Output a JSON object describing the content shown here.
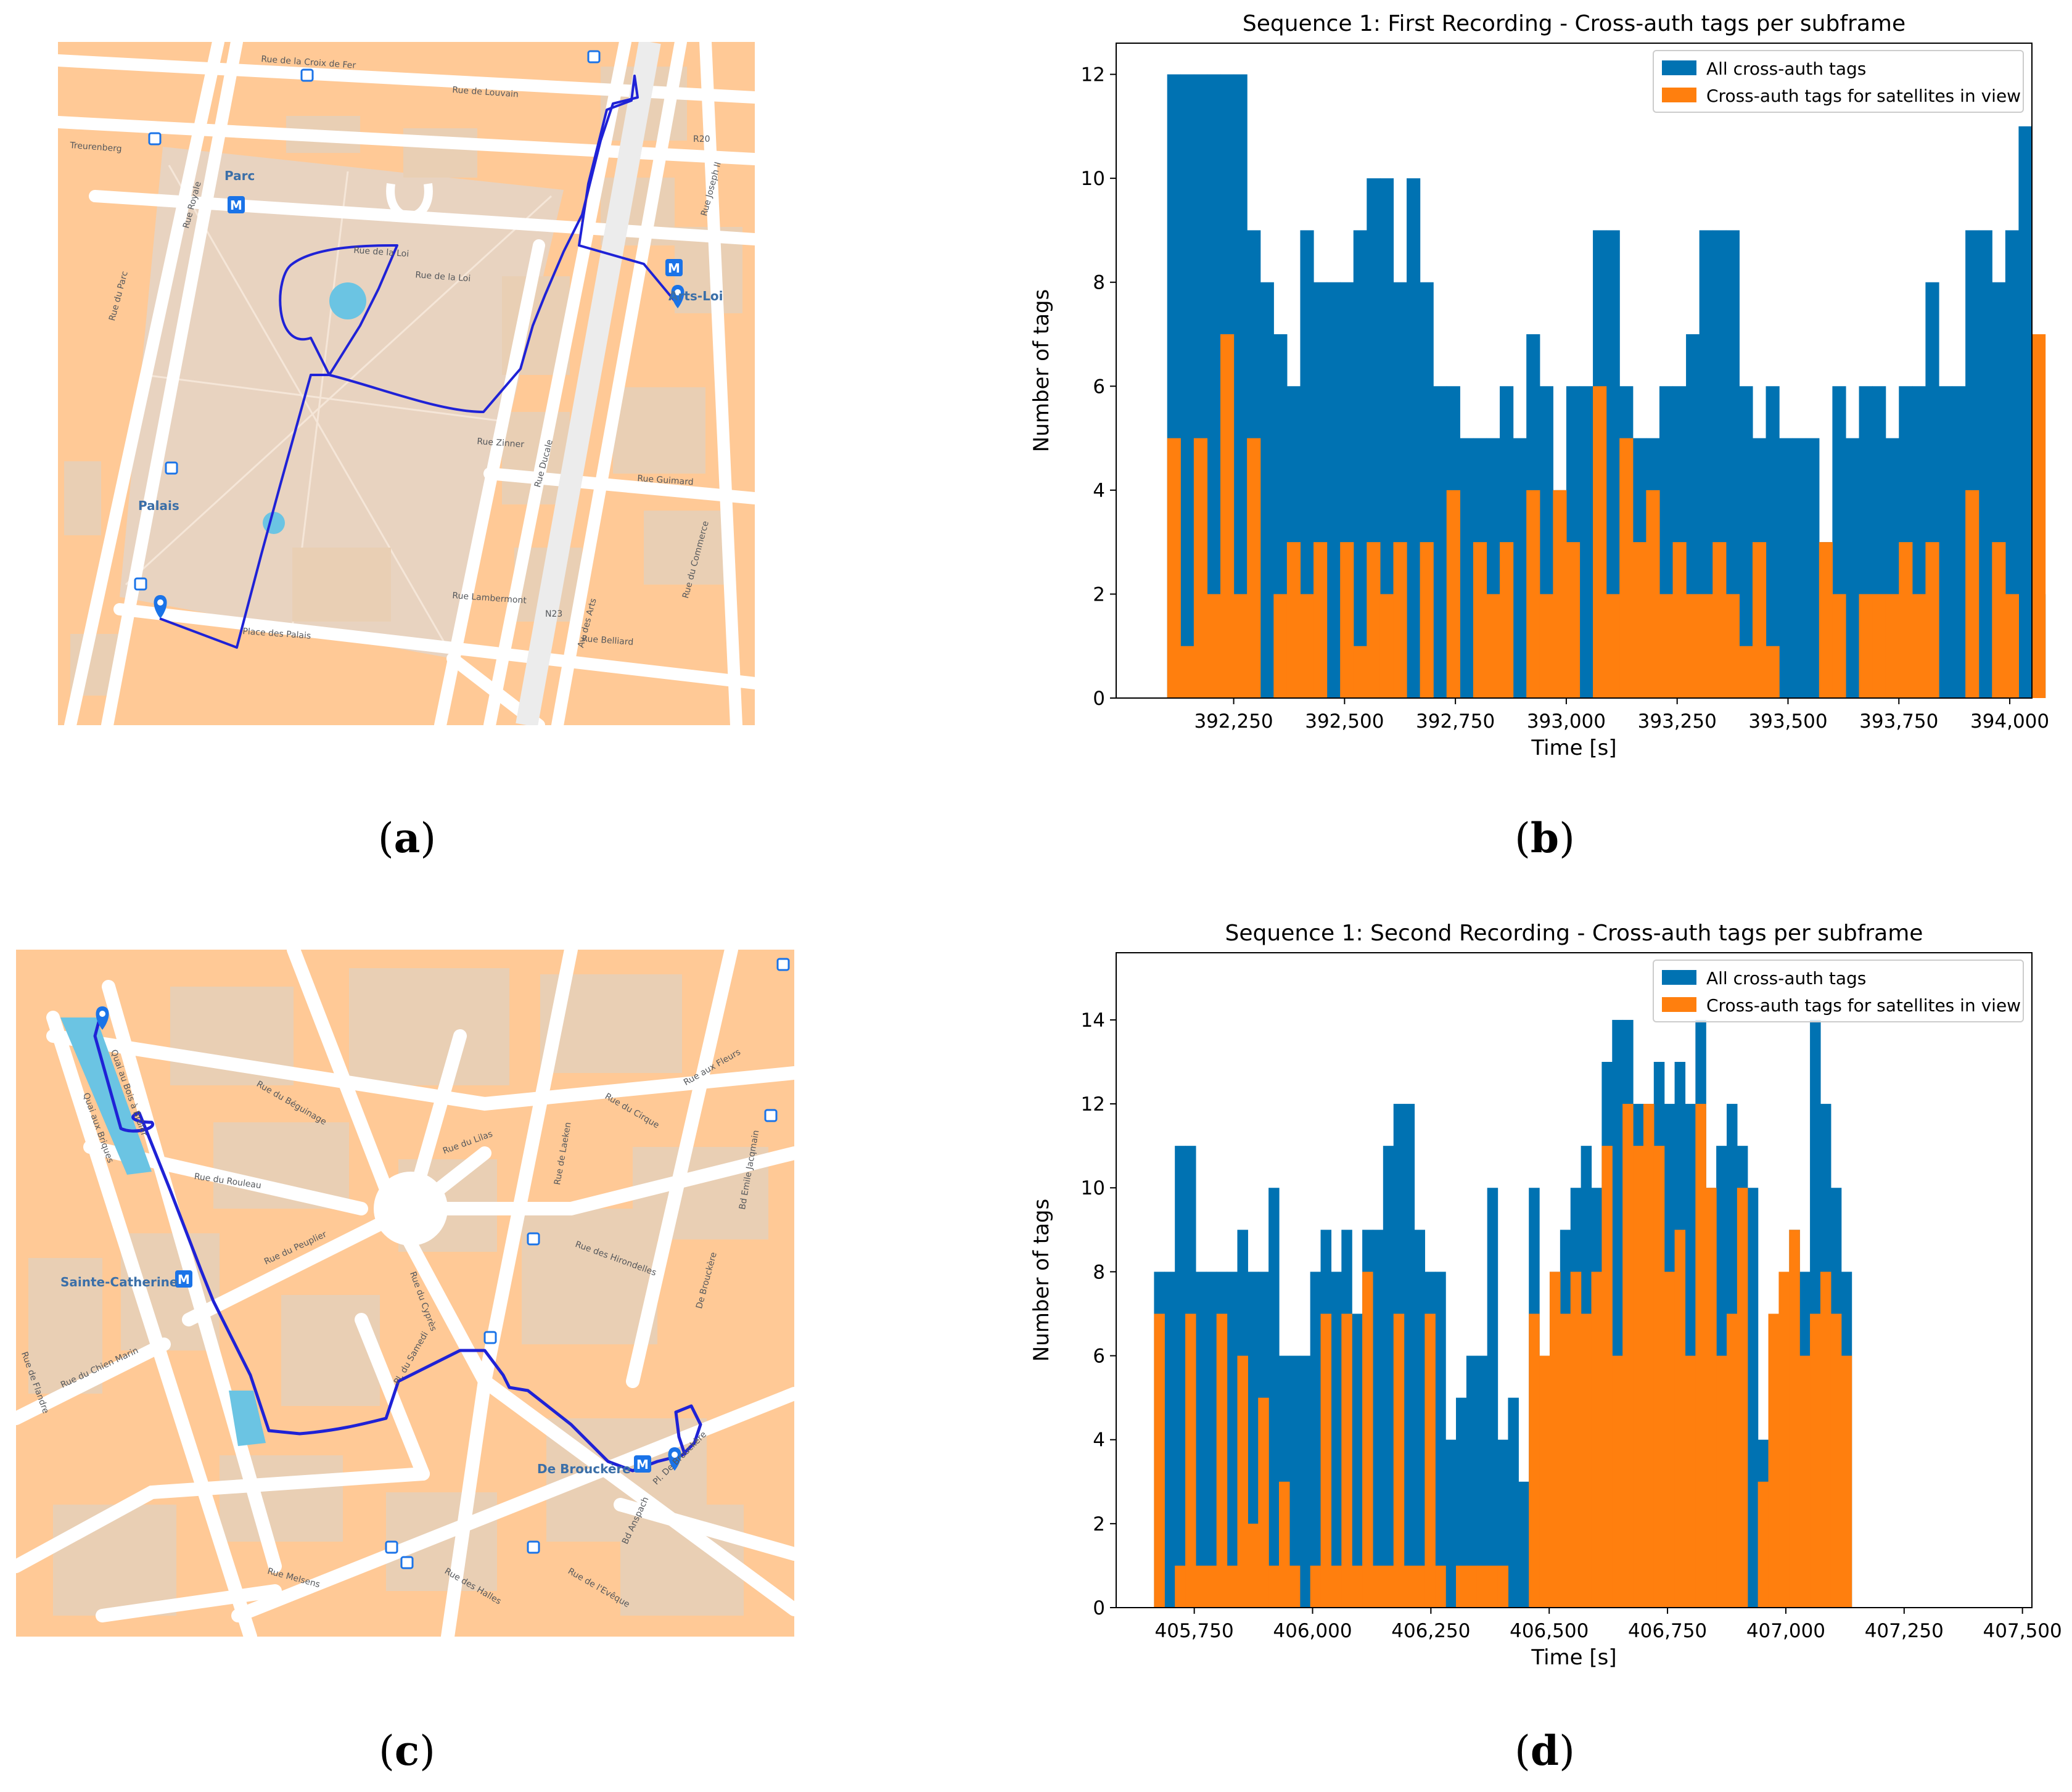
{
  "captions": {
    "a": "a",
    "b": "b",
    "c": "c",
    "d": "d"
  },
  "map_a": {
    "street_labels": [
      "Rue de la Croix de Fer",
      "Rue de Louvain",
      "Treurenberg",
      "Parc",
      "Rue de la Loi",
      "Rue Royale",
      "Rue Ducale",
      "Arts-Loi",
      "Rue Joseph II",
      "Rue du Parc",
      "Rue Zinner",
      "Palais",
      "Rue Guimard",
      "Rue Lambermont",
      "Rue Belliard",
      "Place des Palais",
      "Av. des Arts",
      "Rue du Commerce",
      "Rue de la Loi"
    ],
    "station_labels": [
      "Parc",
      "Arts-Loi",
      "Palais"
    ],
    "road_codes": [
      "R20",
      "N23"
    ]
  },
  "map_c": {
    "street_labels": [
      "Quai aux Briques",
      "Quai au Bois à Brûler",
      "Rue du Béguinage",
      "Rue du Rouleau",
      "Rue du Lilas",
      "Rue de Laeken",
      "Rue du Cirque",
      "Rue aux Fleurs",
      "Rue des Hirondelles",
      "Bd Emile Jacqmain",
      "Rue du Peuplier",
      "Rue de Flandre",
      "Rue du Chien Marin",
      "Rue du Cyprès",
      "Pl. du Samedi",
      "De Brouckère",
      "Pl. De Brouckère",
      "Bd Anspach",
      "Rue Melsens",
      "Rue des Halles",
      "Rue de l'Evêque"
    ],
    "station_labels": [
      "Sainte-Catherine",
      "De Brouckère"
    ]
  },
  "colors": {
    "all": "#0072b2",
    "view": "#ff7f0e",
    "track": "#1f22d6",
    "map_bg": "#f3dcc2",
    "street": "#ffffff",
    "block": "#ffc996",
    "park": "#e8d3c0",
    "water": "#6bc4e3"
  },
  "chart_data": [
    {
      "type": "bar",
      "title": "Sequence 1: First Recording - Cross-auth tags per subframe",
      "xlabel": "Time [s]",
      "ylabel": "Number of tags",
      "x_start": 392100,
      "bin_width": 30,
      "xlim": [
        391985,
        394050
      ],
      "ylim": [
        0,
        12.6
      ],
      "xticks": [
        392250,
        392500,
        392750,
        393000,
        393250,
        393500,
        393750,
        394000
      ],
      "xtick_labels": [
        "392,250",
        "392,500",
        "392,750",
        "393,000",
        "393,250",
        "393,500",
        "393,750",
        "394,000"
      ],
      "yticks": [
        0,
        2,
        4,
        6,
        8,
        10,
        12
      ],
      "ytick_labels": [
        "0",
        "2",
        "4",
        "6",
        "8",
        "10",
        "12"
      ],
      "legend_position": "top-right",
      "series": [
        {
          "name": "All cross-auth tags",
          "values": [
            12,
            12,
            12,
            12,
            12,
            12,
            9,
            8,
            7,
            6,
            9,
            8,
            8,
            8,
            9,
            10,
            10,
            8,
            10,
            8,
            6,
            6,
            5,
            5,
            5,
            6,
            5,
            7,
            6,
            4,
            6,
            6,
            9,
            9,
            6,
            5,
            5,
            6,
            6,
            7,
            9,
            9,
            9,
            6,
            5,
            6,
            5,
            5,
            5,
            3,
            6,
            5,
            6,
            6,
            5,
            6,
            6,
            8,
            6,
            6,
            9,
            9,
            8,
            9,
            11,
            2
          ]
        },
        {
          "name": "Cross-auth tags for satellites in view",
          "values": [
            5,
            1,
            5,
            2,
            7,
            2,
            5,
            0,
            2,
            3,
            2,
            3,
            0,
            3,
            1,
            3,
            2,
            3,
            0,
            3,
            0,
            4,
            0,
            3,
            2,
            3,
            0,
            4,
            2,
            4,
            3,
            0,
            6,
            2,
            5,
            3,
            4,
            2,
            3,
            2,
            2,
            3,
            2,
            1,
            3,
            1,
            0,
            0,
            0,
            3,
            2,
            0,
            2,
            2,
            2,
            3,
            2,
            3,
            0,
            0,
            4,
            0,
            3,
            2,
            0,
            7
          ]
        }
      ]
    },
    {
      "type": "bar",
      "title": "Sequence 1: Second Recording - Cross-auth tags per subframe",
      "xlabel": "Time [s]",
      "ylabel": "Number of tags",
      "x_start": 405665,
      "bin_width": 22,
      "xlim": [
        405585,
        407520
      ],
      "ylim": [
        0,
        15.6
      ],
      "xticks": [
        405750,
        406000,
        406250,
        406500,
        406750,
        407000,
        407250,
        407500
      ],
      "xtick_labels": [
        "405,750",
        "406,000",
        "406,250",
        "406,500",
        "406,750",
        "407,000",
        "407,250",
        "407,500"
      ],
      "yticks": [
        0,
        2,
        4,
        6,
        8,
        10,
        12,
        14
      ],
      "ytick_labels": [
        "0",
        "2",
        "4",
        "6",
        "8",
        "10",
        "12",
        "14"
      ],
      "legend_position": "top-right",
      "series": [
        {
          "name": "All cross-auth tags",
          "values": [
            8,
            8,
            11,
            11,
            8,
            8,
            8,
            8,
            9,
            8,
            8,
            10,
            6,
            6,
            6,
            8,
            9,
            8,
            9,
            7,
            9,
            9,
            11,
            12,
            12,
            9,
            8,
            8,
            4,
            5,
            6,
            6,
            10,
            4,
            5,
            3,
            10,
            6,
            8,
            9,
            10,
            11,
            10,
            13,
            14,
            14,
            12,
            12,
            13,
            12,
            13,
            12,
            14,
            10,
            11,
            12,
            11,
            10,
            4,
            3,
            5,
            9,
            8,
            14,
            12,
            10,
            8
          ]
        },
        {
          "name": "Cross-auth tags for satellites in view",
          "values": [
            7,
            0,
            1,
            7,
            1,
            1,
            7,
            1,
            6,
            2,
            5,
            1,
            3,
            1,
            0,
            1,
            7,
            1,
            7,
            1,
            8,
            1,
            1,
            7,
            1,
            1,
            7,
            1,
            0,
            1,
            1,
            1,
            1,
            1,
            0,
            0,
            7,
            6,
            8,
            7,
            8,
            7,
            8,
            11,
            6,
            12,
            11,
            12,
            11,
            8,
            9,
            6,
            12,
            10,
            6,
            7,
            10,
            0,
            3,
            7,
            8,
            9,
            6,
            7,
            8,
            7,
            6
          ]
        }
      ]
    }
  ]
}
